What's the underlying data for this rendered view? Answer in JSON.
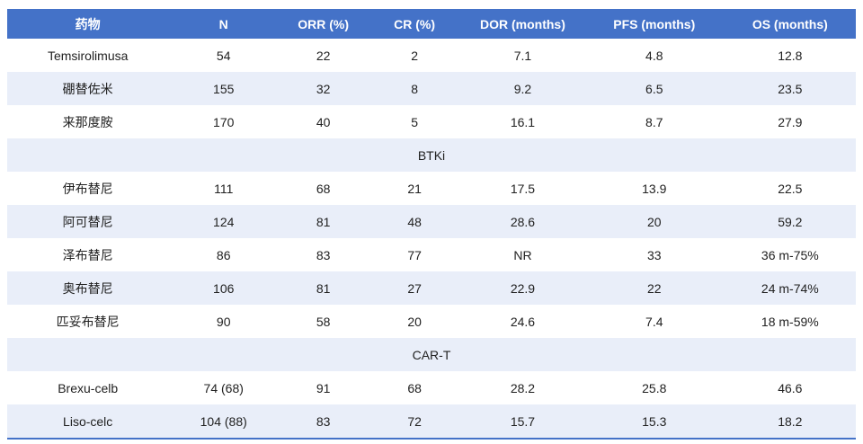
{
  "table": {
    "accent_color": "#4472c8",
    "stripe_color": "#e9eef9",
    "header_text_color": "#ffffff",
    "body_text_color": "#212121",
    "columns": [
      "药物",
      "N",
      "ORR (%)",
      "CR (%)",
      "DOR (months)",
      "PFS (months)",
      "OS (months)"
    ],
    "rows": [
      {
        "type": "data",
        "cells": [
          "Temsirolimusa",
          "54",
          "22",
          "2",
          "7.1",
          "4.8",
          "12.8"
        ]
      },
      {
        "type": "data",
        "cells": [
          "硼替佐米",
          "155",
          "32",
          "8",
          "9.2",
          "6.5",
          "23.5"
        ]
      },
      {
        "type": "data",
        "cells": [
          "来那度胺",
          "170",
          "40",
          "5",
          "16.1",
          "8.7",
          "27.9"
        ]
      },
      {
        "type": "section",
        "label": "BTKi"
      },
      {
        "type": "data",
        "cells": [
          "伊布替尼",
          "111",
          "68",
          "21",
          "17.5",
          "13.9",
          "22.5"
        ]
      },
      {
        "type": "data",
        "cells": [
          "阿可替尼",
          "124",
          "81",
          "48",
          "28.6",
          "20",
          "59.2"
        ]
      },
      {
        "type": "data",
        "cells": [
          "泽布替尼",
          "86",
          "83",
          "77",
          "NR",
          "33",
          "36 m-75%"
        ]
      },
      {
        "type": "data",
        "cells": [
          "奥布替尼",
          "106",
          "81",
          "27",
          "22.9",
          "22",
          "24 m-74%"
        ]
      },
      {
        "type": "data",
        "cells": [
          "匹妥布替尼",
          "90",
          "58",
          "20",
          "24.6",
          "7.4",
          "18 m-59%"
        ]
      },
      {
        "type": "section",
        "label": "CAR-T"
      },
      {
        "type": "data",
        "cells": [
          "Brexu-celb",
          "74 (68)",
          "91",
          "68",
          "28.2",
          "25.8",
          "46.6"
        ]
      },
      {
        "type": "data",
        "cells": [
          "Liso-celc",
          "104 (88)",
          "83",
          "72",
          "15.7",
          "15.3",
          "18.2"
        ]
      }
    ]
  }
}
